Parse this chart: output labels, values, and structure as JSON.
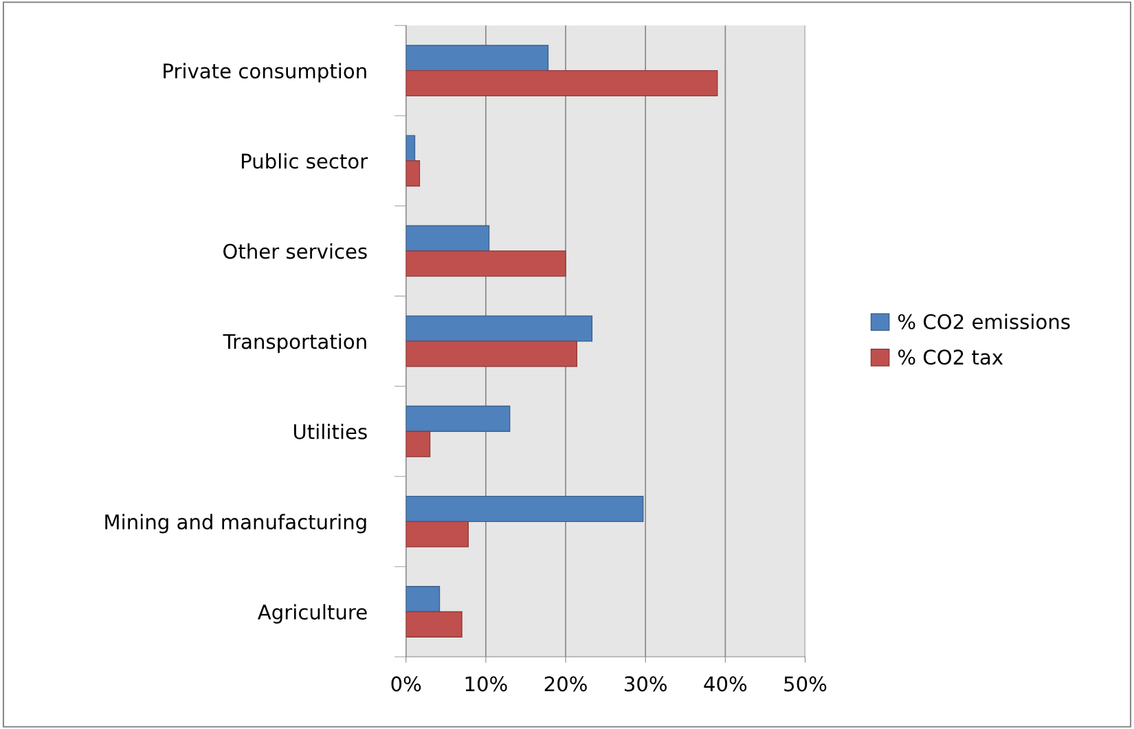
{
  "chart_data": {
    "type": "bar",
    "orientation": "horizontal",
    "categories": [
      "Private consumption",
      "Public sector",
      "Other services",
      "Transportation",
      "Utilities",
      "Mining and manufacturing",
      "Agriculture"
    ],
    "series": [
      {
        "name": "% CO2 emissions",
        "color": "#4f81bd",
        "values": [
          17.8,
          1.1,
          10.4,
          23.3,
          13.0,
          29.7,
          4.2
        ]
      },
      {
        "name": "% CO2 tax",
        "color": "#c0504d",
        "values": [
          39.0,
          1.7,
          20.0,
          21.4,
          3.0,
          7.8,
          7.0
        ]
      }
    ],
    "xlim": [
      0,
      50
    ],
    "xticks": [
      {
        "value": 0,
        "label": "0%"
      },
      {
        "value": 10,
        "label": "10%"
      },
      {
        "value": 20,
        "label": "20%"
      },
      {
        "value": 30,
        "label": "30%"
      },
      {
        "value": 40,
        "label": "40%"
      },
      {
        "value": 50,
        "label": "50%"
      }
    ],
    "grid": "x",
    "legend": "right"
  }
}
